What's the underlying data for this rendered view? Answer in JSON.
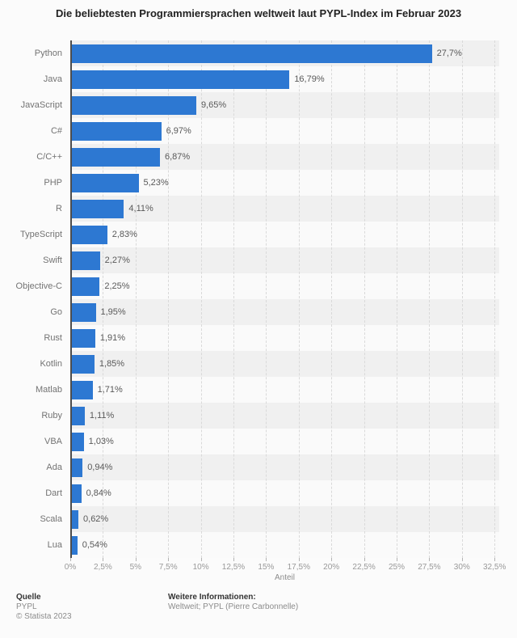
{
  "title": "Die beliebtesten Programmiersprachen weltweit laut PYPL-Index im Februar 2023",
  "chart_data": {
    "type": "bar",
    "orientation": "horizontal",
    "title": "Die beliebtesten Programmiersprachen weltweit laut PYPL-Index im Februar 2023",
    "categories": [
      "Python",
      "Java",
      "JavaScript",
      "C#",
      "C/C++",
      "PHP",
      "R",
      "TypeScript",
      "Swift",
      "Objective-C",
      "Go",
      "Rust",
      "Kotlin",
      "Matlab",
      "Ruby",
      "VBA",
      "Ada",
      "Dart",
      "Scala",
      "Lua"
    ],
    "values": [
      27.7,
      16.79,
      9.65,
      6.97,
      6.87,
      5.23,
      4.11,
      2.83,
      2.27,
      2.25,
      1.95,
      1.91,
      1.85,
      1.71,
      1.11,
      1.03,
      0.94,
      0.84,
      0.62,
      0.54
    ],
    "value_labels": [
      "27,7%",
      "16,79%",
      "9,65%",
      "6,97%",
      "6,87%",
      "5,23%",
      "4,11%",
      "2,83%",
      "2,27%",
      "2,25%",
      "1,95%",
      "1,91%",
      "1,85%",
      "1,71%",
      "1,11%",
      "1,03%",
      "0,94%",
      "0,84%",
      "0,62%",
      "0,54%"
    ],
    "xlabel": "Anteil",
    "ylabel": "",
    "x_tick_values": [
      0,
      2.5,
      5,
      7.5,
      10,
      12.5,
      15,
      17.5,
      20,
      22.5,
      25,
      27.5,
      30,
      32.5
    ],
    "x_tick_labels": [
      "0%",
      "2,5%",
      "5%",
      "7,5%",
      "10%",
      "12,5%",
      "15%",
      "17,5%",
      "20%",
      "22,5%",
      "25%",
      "27,5%",
      "30%",
      "32,5%"
    ],
    "xlim": [
      0,
      32.86
    ],
    "grid": "vertical-dashed",
    "legend": "none",
    "bar_color": "#2d78d2",
    "stripe_colors": [
      "#f0f0f0",
      "#fafafa"
    ]
  },
  "footer": {
    "source_heading": "Quelle",
    "source_lines": [
      "PYPL",
      "© Statista 2023"
    ],
    "info_heading": "Weitere Informationen:",
    "info_lines": [
      "Weltweit; PYPL (Pierre Carbonnelle)"
    ]
  }
}
